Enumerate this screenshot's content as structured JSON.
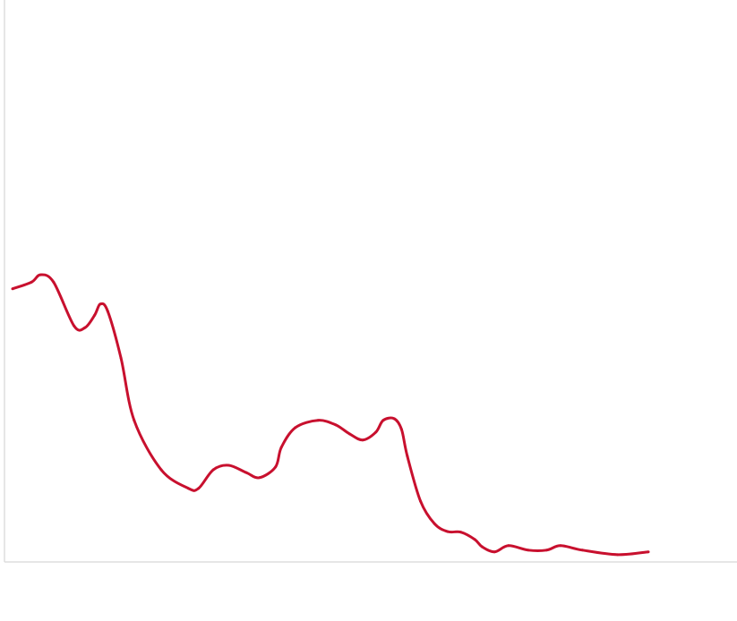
{
  "chart_data": {
    "type": "line",
    "title": "",
    "xlabel": "",
    "ylabel": "",
    "xlim": [
      0,
      100
    ],
    "ylim": [
      0,
      100
    ],
    "grid": false,
    "legend": "none",
    "line_color": "#c8102e",
    "axis_color": "#dddddd",
    "series": [
      {
        "x": [
          1.1,
          3.7,
          4.9,
          6.7,
          9.5,
          11.0,
          12.3,
          13.1,
          14.1,
          15.9,
          17.7,
          21.4,
          25.1,
          26.5,
          28.5,
          30.6,
          33.0,
          34.8,
          37.0,
          37.8,
          39.7,
          42.8,
          45.2,
          47.1,
          48.9,
          50.7,
          51.7,
          53.2,
          54.2,
          55.0,
          56.8,
          58.7,
          60.5,
          62.3,
          64.2,
          65.2,
          66.9,
          68.8,
          71.5,
          74.0,
          75.9,
          78.9,
          83.7,
          87.9
        ],
        "y": [
          48.6,
          49.8,
          51.1,
          49.8,
          42.0,
          41.7,
          43.9,
          45.9,
          44.6,
          36.3,
          25.2,
          16.4,
          13.1,
          13.1,
          16.4,
          17.2,
          15.9,
          15.0,
          16.9,
          20.4,
          23.9,
          25.2,
          24.4,
          22.8,
          21.7,
          23.1,
          25.2,
          25.5,
          23.6,
          18.8,
          10.8,
          6.8,
          5.4,
          5.3,
          4.0,
          2.7,
          1.8,
          2.9,
          2.1,
          2.1,
          2.9,
          2.1,
          1.3,
          1.8
        ]
      }
    ]
  }
}
